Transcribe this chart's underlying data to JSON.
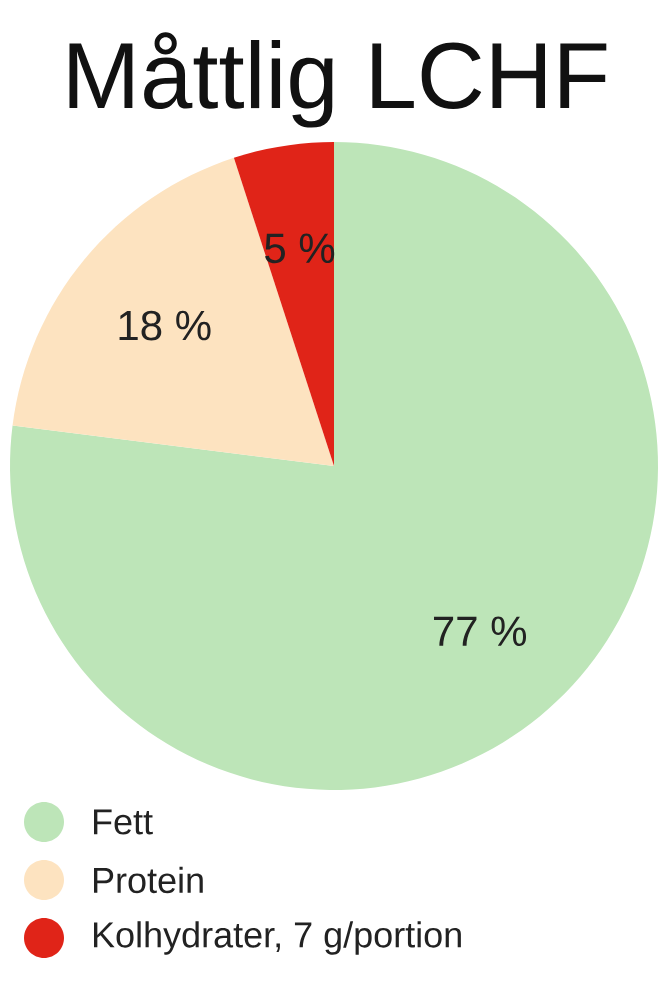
{
  "chart_data": {
    "type": "pie",
    "title": "Måttlig LCHF",
    "categories": [
      "Fett",
      "Protein",
      "Kolhydrater, 7 g/portion"
    ],
    "values": [
      77,
      18,
      5
    ],
    "colors": [
      "#bde5b8",
      "#fde3c0",
      "#e02418"
    ],
    "value_labels": [
      "77 %",
      "18 %",
      "5 %"
    ],
    "legend": "bottom left"
  }
}
